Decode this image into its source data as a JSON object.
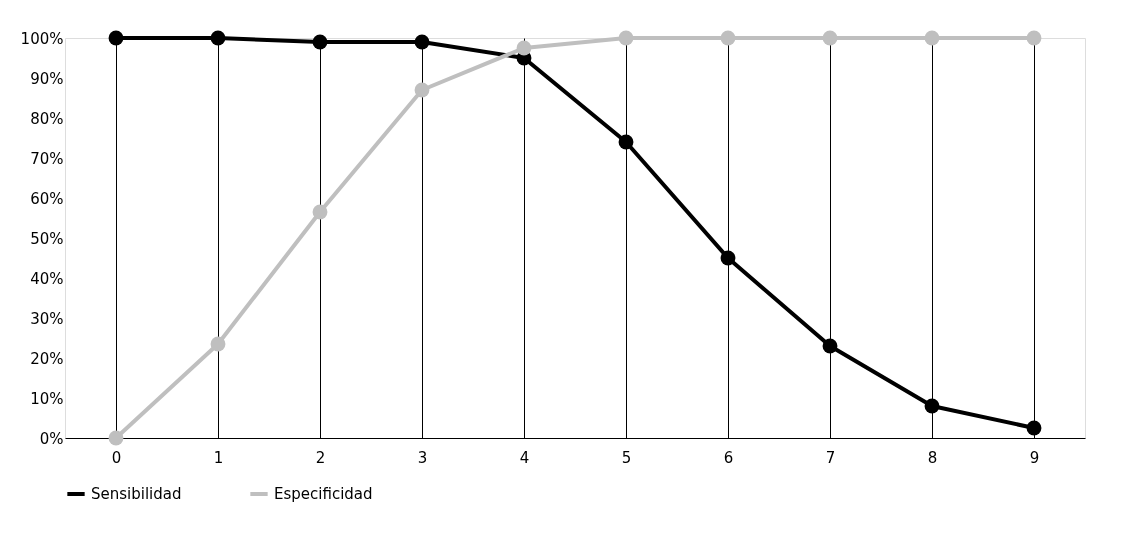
{
  "chart_data": {
    "type": "line",
    "categories": [
      "0",
      "1",
      "2",
      "3",
      "4",
      "5",
      "6",
      "7",
      "8",
      "9"
    ],
    "series": [
      {
        "name": "Sensibilidad",
        "color": "#000000",
        "values": [
          100,
          100,
          99,
          99,
          95,
          74,
          45,
          23,
          8,
          2.5
        ]
      },
      {
        "name": "Especificidad",
        "color": "#bfbfbf",
        "values": [
          0,
          23.5,
          56.5,
          87,
          97.5,
          100,
          100,
          100,
          100,
          100
        ]
      }
    ],
    "ylim": [
      0,
      100
    ],
    "yticks": [
      {
        "value": 0,
        "label": "0%"
      },
      {
        "value": 10,
        "label": "10%"
      },
      {
        "value": 20,
        "label": "20%"
      },
      {
        "value": 30,
        "label": "30%"
      },
      {
        "value": 40,
        "label": "40%"
      },
      {
        "value": 50,
        "label": "50%"
      },
      {
        "value": 60,
        "label": "60%"
      },
      {
        "value": 70,
        "label": "70%"
      },
      {
        "value": 80,
        "label": "80%"
      },
      {
        "value": 90,
        "label": "90%"
      },
      {
        "value": 100,
        "label": "100%"
      }
    ],
    "grid": "x",
    "legend": "bottom",
    "marker": "circle",
    "line_style": "solid"
  }
}
